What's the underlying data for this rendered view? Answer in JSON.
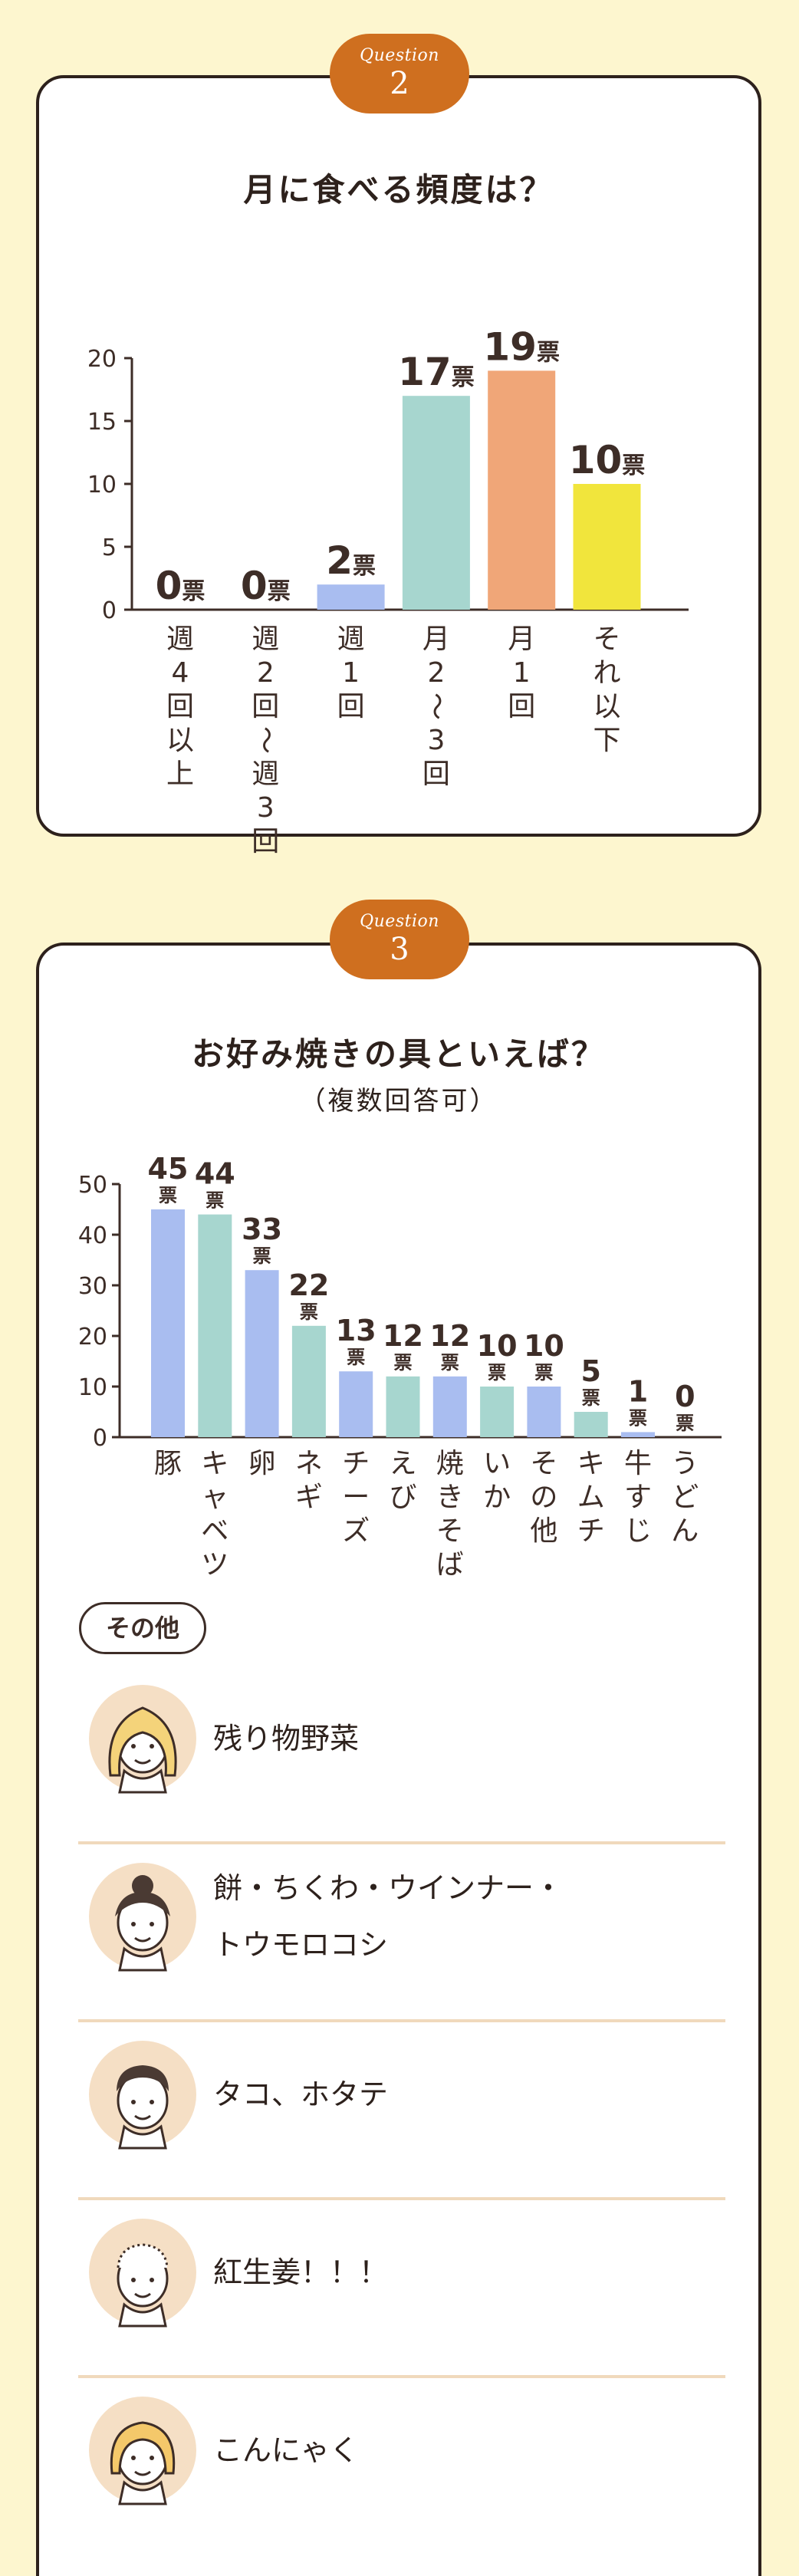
{
  "q2": {
    "badge_word": "Question",
    "badge_num": "2",
    "title": "月に食べる頻度は？"
  },
  "q3": {
    "badge_word": "Question",
    "badge_num": "3",
    "title": "お好み焼きの具といえば？",
    "subtitle": "（複数回答可）",
    "other_label": "その他",
    "comments": [
      {
        "lines": [
          "残り物野菜"
        ],
        "avatar": "woman-long-hair-avatar-icon"
      },
      {
        "lines": [
          "餅・ちくわ・ウインナー・",
          "トウモロコシ"
        ],
        "avatar": "woman-bun-hair-avatar-icon"
      },
      {
        "lines": [
          "タコ、ホタテ"
        ],
        "avatar": "man-short-hair-avatar-icon"
      },
      {
        "lines": [
          "紅生姜！！！"
        ],
        "avatar": "bald-man-avatar-icon"
      },
      {
        "lines": [
          "こんにゃく"
        ],
        "avatar": "woman-bob-hair-avatar-icon"
      }
    ]
  },
  "colors": {
    "blue": "#a9bdf0",
    "mint": "#a7d6cf",
    "peach": "#f0a678",
    "yellow": "#f1e53c",
    "badge": "#cf6f1f",
    "divider": "#f0d9bc"
  },
  "chart_data": [
    {
      "type": "bar",
      "unit": "票",
      "categories": [
        "週4回以上",
        "週2回〜週3回",
        "週1回",
        "月2〜3回",
        "月1回",
        "それ以下"
      ],
      "values": [
        0,
        0,
        2,
        17,
        19,
        10
      ],
      "bar_colors": [
        "#a9bdf0",
        "#a9bdf0",
        "#a9bdf0",
        "#a7d6cf",
        "#f0a678",
        "#f1e53c"
      ],
      "yticks": [
        0,
        5,
        10,
        15,
        20
      ],
      "ylim": [
        0,
        20
      ],
      "grid": false
    },
    {
      "type": "bar",
      "unit": "票",
      "categories": [
        "豚",
        "キャベツ",
        "卵",
        "ネギ",
        "チーズ",
        "えび",
        "焼きそば",
        "いか",
        "その他",
        "キムチ",
        "牛すじ",
        "うどん"
      ],
      "values": [
        45,
        44,
        33,
        22,
        13,
        12,
        12,
        10,
        10,
        5,
        1,
        0
      ],
      "bar_colors": [
        "#a9bdf0",
        "#a7d6cf",
        "#a9bdf0",
        "#a7d6cf",
        "#a9bdf0",
        "#a7d6cf",
        "#a9bdf0",
        "#a7d6cf",
        "#a9bdf0",
        "#a7d6cf",
        "#a9bdf0",
        "#a7d6cf"
      ],
      "yticks": [
        0,
        10,
        20,
        30,
        40,
        50
      ],
      "ylim": [
        0,
        50
      ],
      "grid": false
    }
  ]
}
